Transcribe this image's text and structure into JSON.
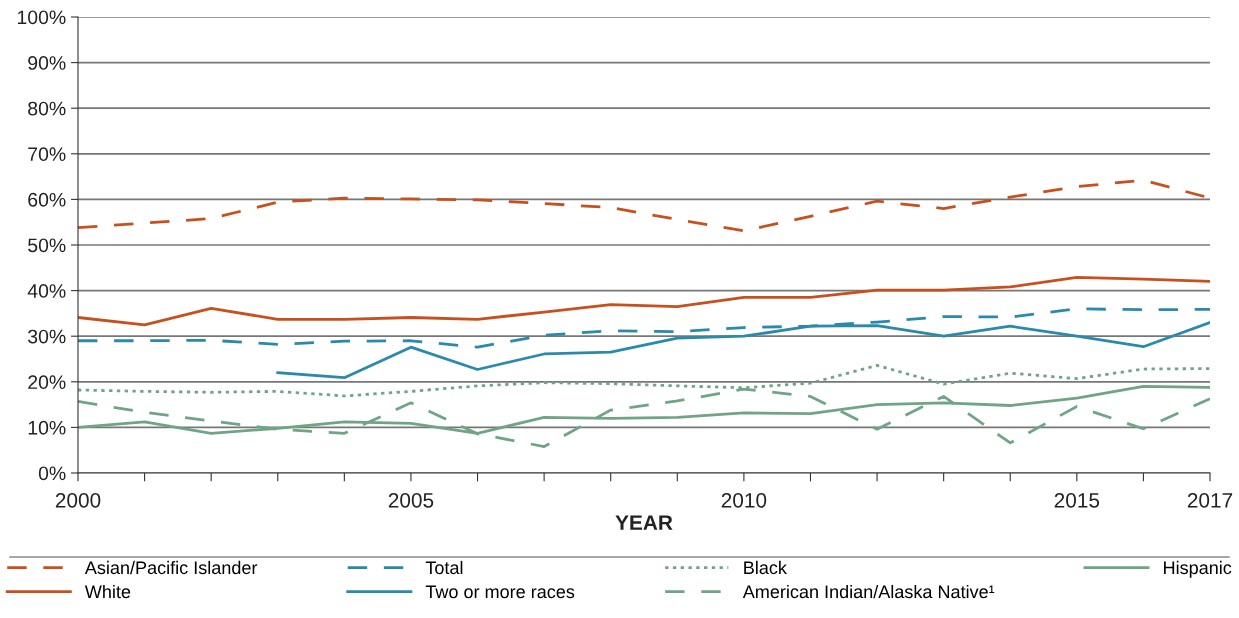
{
  "chart_data": {
    "type": "line",
    "xlabel": "YEAR",
    "x": [
      2000,
      2001,
      2002,
      2003,
      2004,
      2005,
      2006,
      2007,
      2008,
      2009,
      2010,
      2011,
      2012,
      2013,
      2014,
      2015,
      2016,
      2017
    ],
    "xlim": [
      2000,
      2017
    ],
    "xticks": [
      2000,
      {
        "value": 2001,
        "label": null
      },
      {
        "value": 2002,
        "label": null
      },
      {
        "value": 2003,
        "label": null
      },
      {
        "value": 2004,
        "label": null
      },
      2005,
      {
        "value": 2006,
        "label": null
      },
      {
        "value": 2007,
        "label": null
      },
      {
        "value": 2008,
        "label": null
      },
      {
        "value": 2009,
        "label": null
      },
      2010,
      {
        "value": 2011,
        "label": null
      },
      {
        "value": 2012,
        "label": null
      },
      {
        "value": 2013,
        "label": null
      },
      {
        "value": 2014,
        "label": null
      },
      2015,
      {
        "value": 2016,
        "label": null
      },
      2017
    ],
    "ylim": [
      0,
      100
    ],
    "yticks": [
      {
        "value": 0,
        "label": "0%"
      },
      {
        "value": 10,
        "label": "10%"
      },
      {
        "value": 20,
        "label": "20%"
      },
      {
        "value": 30,
        "label": "30%"
      },
      {
        "value": 40,
        "label": "40%"
      },
      {
        "value": 50,
        "label": "50%"
      },
      {
        "value": 60,
        "label": "60%"
      },
      {
        "value": 70,
        "label": "70%"
      },
      {
        "value": 80,
        "label": "80%"
      },
      {
        "value": 90,
        "label": "90%"
      },
      {
        "value": 100,
        "label": "100%"
      }
    ],
    "grid": "y",
    "legend": "bottom",
    "marker": "none",
    "series": [
      {
        "name": "Asian/Pacific Islander",
        "color": "#c8501e",
        "line_style": "dashed",
        "values": [
          53.8,
          54.8,
          55.8,
          59.4,
          60.3,
          60.1,
          59.9,
          59.1,
          58.2,
          55.6,
          53.1,
          56.3,
          59.6,
          58.0,
          60.5,
          62.8,
          64.2,
          60.3
        ]
      },
      {
        "name": "White",
        "color": "#c8501e",
        "line_style": "solid",
        "values": [
          34.1,
          32.5,
          36.1,
          33.7,
          33.7,
          34.1,
          33.7,
          35.3,
          36.9,
          36.5,
          38.5,
          38.5,
          40.1,
          40.1,
          40.8,
          42.9,
          42.5,
          42.0
        ]
      },
      {
        "name": "Total",
        "color": "#2a8aab",
        "line_style": "dashed",
        "values": [
          29.0,
          29.0,
          29.1,
          28.2,
          28.9,
          29.0,
          27.6,
          30.2,
          31.2,
          31.0,
          31.9,
          32.2,
          33.1,
          34.3,
          34.2,
          36.0,
          35.8,
          35.9
        ]
      },
      {
        "name": "Two or more races",
        "color": "#2a8aab",
        "line_style": "solid",
        "values": [
          null,
          null,
          null,
          22.0,
          20.9,
          27.6,
          22.7,
          26.1,
          26.5,
          29.6,
          30.0,
          32.2,
          32.3,
          30.0,
          32.2,
          30.0,
          27.7,
          33.0
        ]
      },
      {
        "name": "Black",
        "color": "#6fa585",
        "line_style": "dotted",
        "values": [
          18.2,
          17.9,
          17.7,
          17.9,
          16.9,
          17.9,
          19.1,
          19.8,
          19.6,
          19.1,
          18.7,
          19.7,
          23.6,
          19.5,
          21.9,
          20.7,
          22.8,
          22.9
        ]
      },
      {
        "name": "American Indian/Alaska Native¹",
        "color": "#6fa585",
        "line_style": "dashed",
        "values": [
          15.7,
          13.3,
          11.4,
          9.6,
          8.7,
          15.4,
          8.6,
          5.8,
          13.8,
          15.8,
          18.4,
          16.8,
          9.6,
          16.8,
          6.6,
          14.6,
          9.7,
          16.3
        ]
      },
      {
        "name": "Hispanic",
        "color": "#6fa585",
        "line_style": "solid",
        "values": [
          10.0,
          11.2,
          8.7,
          9.8,
          11.2,
          10.9,
          8.7,
          12.2,
          12.0,
          12.2,
          13.2,
          13.0,
          15.0,
          15.4,
          14.8,
          16.4,
          19.0,
          18.8
        ]
      }
    ]
  }
}
